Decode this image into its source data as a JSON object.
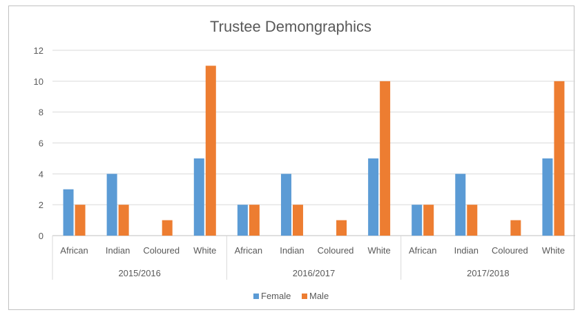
{
  "chart_data": {
    "type": "bar",
    "title": "Trustee Demongraphics",
    "groups": [
      {
        "label": "2015/2016",
        "categories": [
          "African",
          "Indian",
          "Coloured",
          "White"
        ]
      },
      {
        "label": "2016/2017",
        "categories": [
          "African",
          "Indian",
          "Coloured",
          "White"
        ]
      },
      {
        "label": "2017/2018",
        "categories": [
          "African",
          "Indian",
          "Coloured",
          "White"
        ]
      }
    ],
    "series": [
      {
        "name": "Female",
        "color": "#5b9bd5",
        "values": [
          3,
          4,
          0,
          5,
          2,
          4,
          0,
          5,
          2,
          4,
          0,
          5
        ]
      },
      {
        "name": "Male",
        "color": "#ed7d31",
        "values": [
          2,
          2,
          1,
          11,
          2,
          2,
          1,
          10,
          2,
          2,
          1,
          10
        ]
      }
    ],
    "ylim": [
      0,
      12
    ],
    "yticks": [
      0,
      2,
      4,
      6,
      8,
      10,
      12
    ],
    "grid": true,
    "legend_position": "bottom"
  }
}
